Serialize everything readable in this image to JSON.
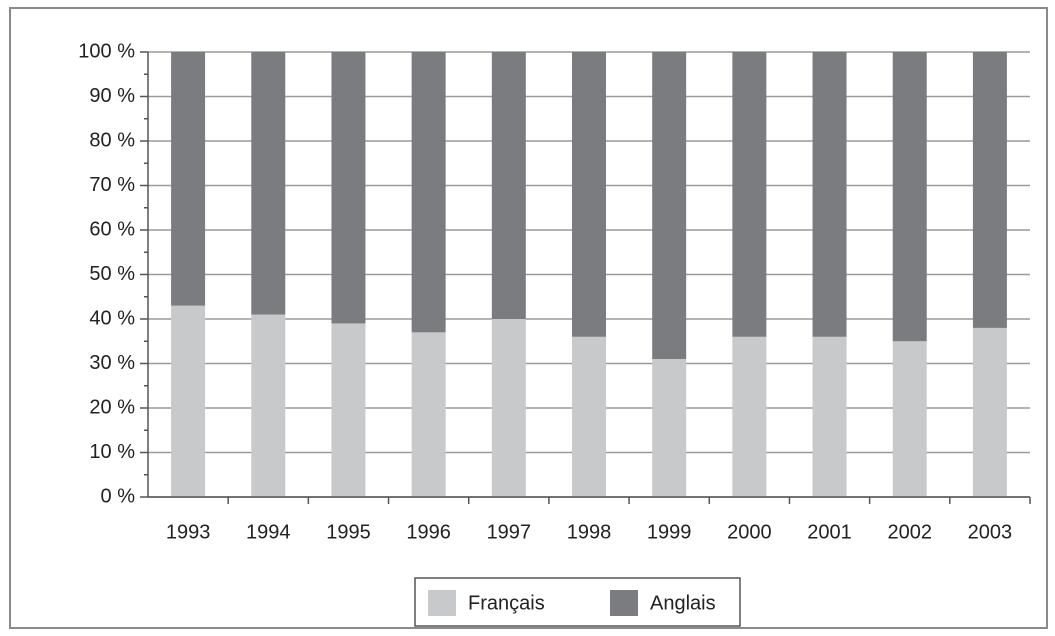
{
  "chart_data": {
    "type": "stacked_bar",
    "categories": [
      "1993",
      "1994",
      "1995",
      "1996",
      "1997",
      "1998",
      "1999",
      "2000",
      "2001",
      "2002",
      "2003"
    ],
    "series": [
      {
        "name": "Français",
        "color": "#c8c9cb",
        "values": [
          43,
          41,
          39,
          37,
          40,
          36,
          31,
          36,
          36,
          35,
          38
        ]
      },
      {
        "name": "Anglais",
        "color": "#7a7c7f",
        "values": [
          57,
          59,
          61,
          63,
          60,
          64,
          69,
          64,
          64,
          65,
          62
        ]
      }
    ],
    "ylim": [
      0,
      100
    ],
    "yticks": [
      {
        "value": 0,
        "label": "0 %"
      },
      {
        "value": 10,
        "label": "10 %"
      },
      {
        "value": 20,
        "label": "20 %"
      },
      {
        "value": 30,
        "label": "30 %"
      },
      {
        "value": 40,
        "label": "40 %"
      },
      {
        "value": 50,
        "label": "50 %"
      },
      {
        "value": 60,
        "label": "60 %"
      },
      {
        "value": 70,
        "label": "70 %"
      },
      {
        "value": 80,
        "label": "80 %"
      },
      {
        "value": 90,
        "label": "90 %"
      },
      {
        "value": 100,
        "label": "100 %"
      }
    ],
    "grid": true
  }
}
